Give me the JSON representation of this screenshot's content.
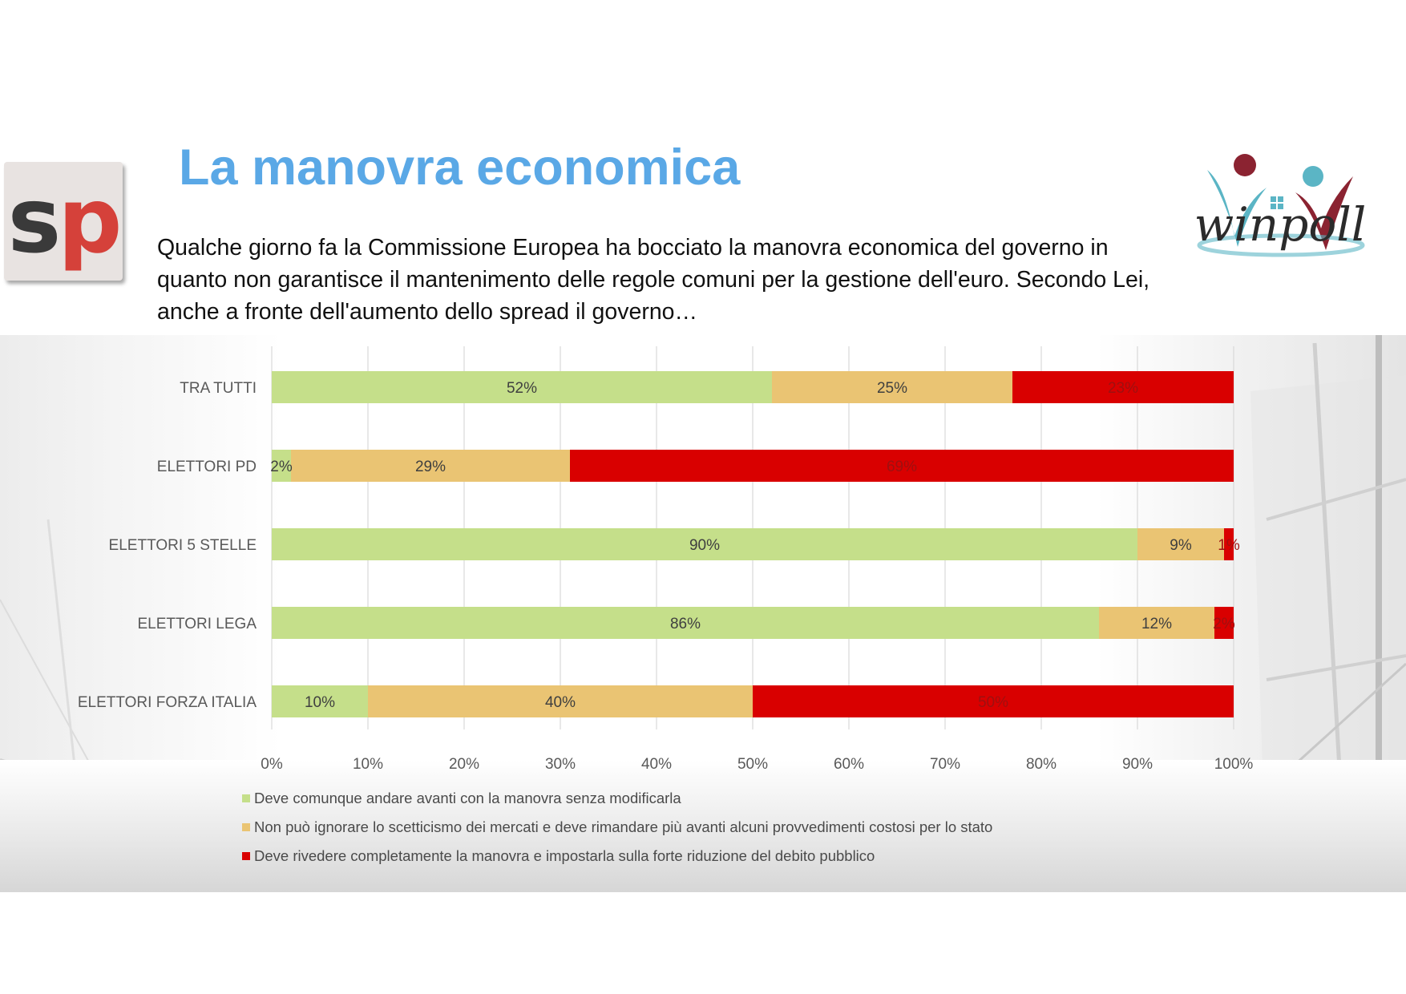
{
  "slide": {
    "title": "La manovra economica",
    "question": "Qualche giorno fa la Commissione Europea ha bocciato la manovra economica del governo in quanto non garantisce il mantenimento delle regole comuni per la gestione dell'euro. Secondo Lei, anche a fronte dell'aumento dello spread il governo…"
  },
  "logos": {
    "left": {
      "letters": [
        "s",
        "p"
      ],
      "colors": [
        "#3a3a3a",
        "#d5413a"
      ]
    },
    "right": {
      "text": "winpoll",
      "colors": [
        "#8b2331",
        "#5bb5c5",
        "#2b2b2b"
      ]
    }
  },
  "chart_data": {
    "type": "bar",
    "orientation": "horizontal",
    "stacked": "100%",
    "title": "",
    "xlabel": "",
    "ylabel": "",
    "categories": [
      "TRA TUTTI",
      "ELETTORI PD",
      "ELETTORI 5 STELLE",
      "ELETTORI LEGA",
      "ELETTORI FORZA ITALIA"
    ],
    "series": [
      {
        "name": "Deve comunque andare avanti con la manovra senza modificarla",
        "color": "#c5df8a",
        "values": [
          52,
          2,
          90,
          86,
          10
        ]
      },
      {
        "name": "Non può ignorare lo scetticismo dei mercati e deve rimandare più avanti alcuni provvedimenti costosi per lo stato",
        "color": "#eac473",
        "values": [
          25,
          29,
          9,
          12,
          40
        ]
      },
      {
        "name": "Deve rivedere completamente la manovra e impostarla sulla forte riduzione del debito pubblico",
        "color": "#d90000",
        "values": [
          23,
          69,
          1,
          2,
          50
        ]
      }
    ],
    "xlim": [
      0,
      100
    ],
    "xticks": [
      "0%",
      "10%",
      "20%",
      "30%",
      "40%",
      "50%",
      "60%",
      "70%",
      "80%",
      "90%",
      "100%"
    ],
    "value_suffix": "%",
    "grid": "vertical",
    "legend": "bottom-left"
  }
}
